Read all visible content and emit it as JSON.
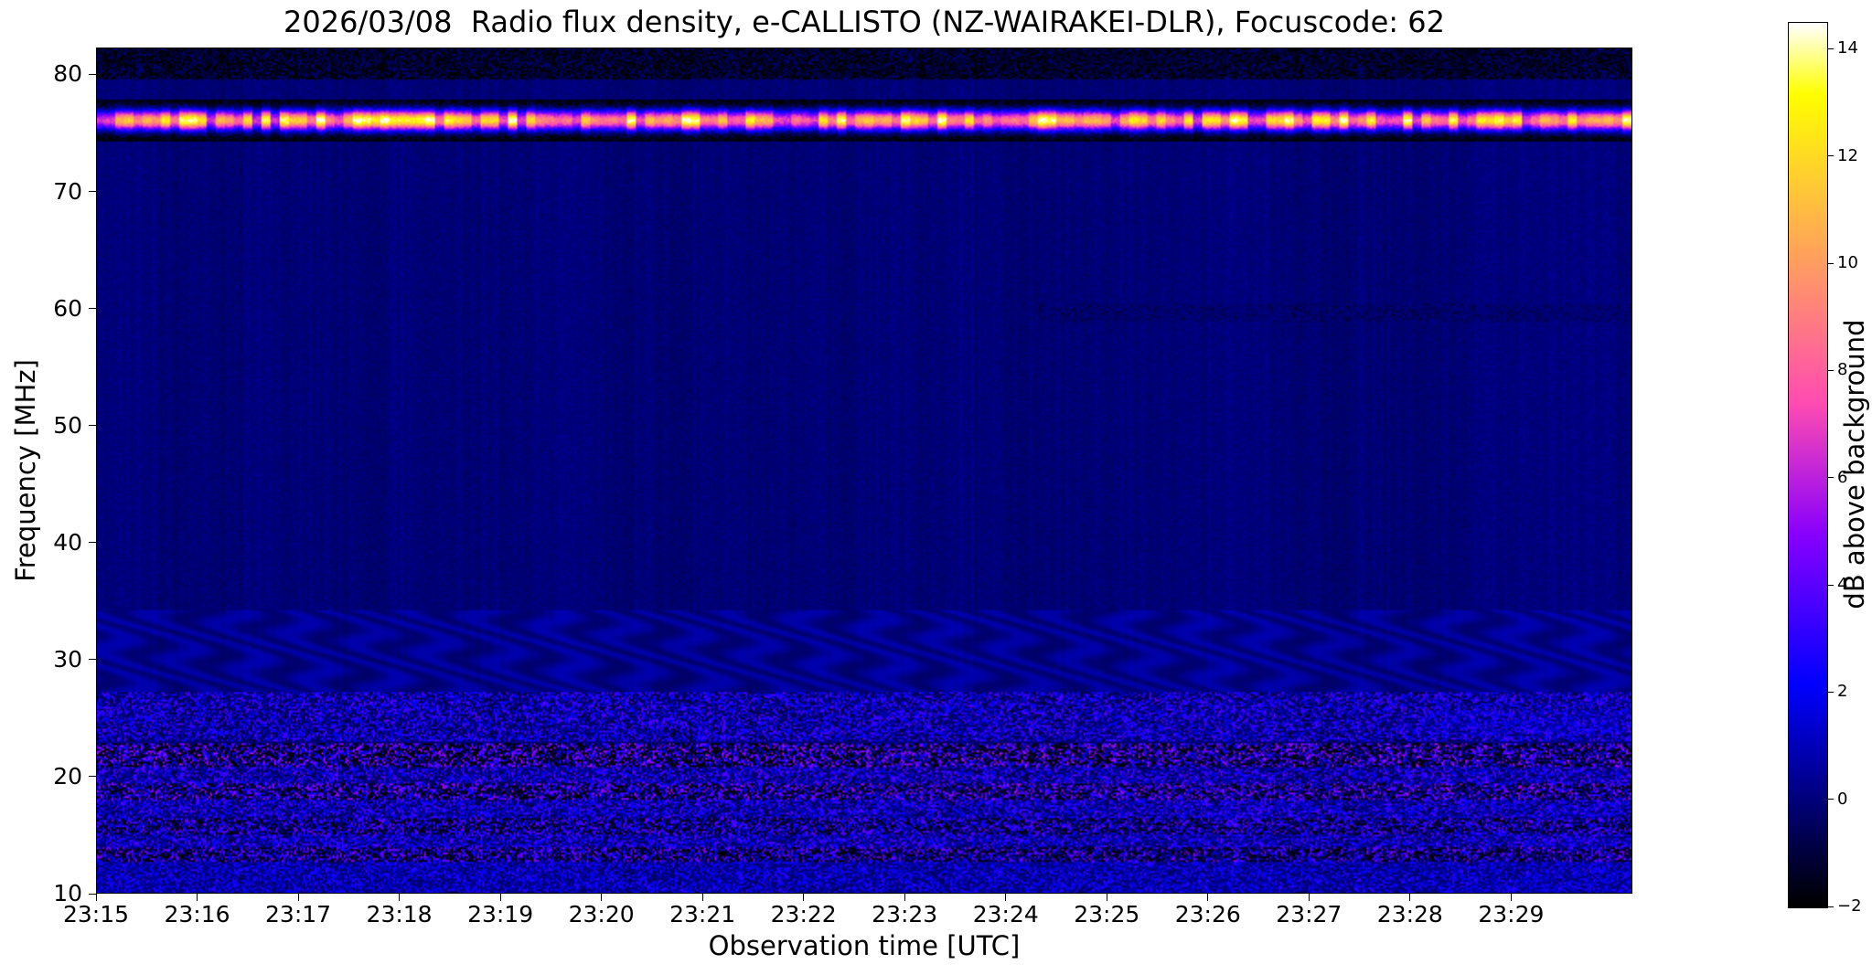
{
  "chart_data": {
    "type": "heatmap",
    "title": "2026/03/08  Radio flux density, e-CALLISTO (NZ-WAIRAKEI-DLR), Focuscode: 62",
    "xlabel": "Observation time [UTC]",
    "ylabel": "Frequency [MHz]",
    "x_ticks": [
      "23:15",
      "23:16",
      "23:17",
      "23:18",
      "23:19",
      "23:20",
      "23:21",
      "23:22",
      "23:23",
      "23:24",
      "23:25",
      "23:26",
      "23:27",
      "23:28",
      "23:29"
    ],
    "x_range_minutes": [
      0,
      15.2
    ],
    "x_start": "23:15",
    "y_ticks": [
      80,
      70,
      60,
      50,
      40,
      30,
      20,
      10
    ],
    "y_range_mhz": [
      10,
      82.3
    ],
    "grid": false,
    "colorbar": {
      "label": "dB above background",
      "colormap": "gnuplot2",
      "range": [
        -2,
        14.5
      ],
      "ticks": [
        {
          "label": "14",
          "value": 14
        },
        {
          "label": "12",
          "value": 12
        },
        {
          "label": "10",
          "value": 10
        },
        {
          "label": "8",
          "value": 8
        },
        {
          "label": "6",
          "value": 6
        },
        {
          "label": "4",
          "value": 4
        },
        {
          "label": "2",
          "value": 2
        },
        {
          "label": "0",
          "value": 0
        },
        {
          "label": "−2",
          "value": -2
        }
      ]
    },
    "background_db": 0.45,
    "bands": [
      {
        "name": "upper-edge-noise",
        "f": [
          79.6,
          82.3
        ],
        "mode": "noise",
        "base": 0.35,
        "noise": 1.0,
        "speckle_prob": 0.012,
        "speckle": [
          -2,
          1.5
        ]
      },
      {
        "name": "rfi-band-76mhz",
        "f": [
          74.35,
          77.85
        ],
        "mode": "rfi",
        "center": 76.15,
        "sigma": 0.6,
        "peak": 15.5,
        "dark_fraction": 0.5
      },
      {
        "name": "faint-smudge-59mhz",
        "f": [
          58.8,
          60.4
        ],
        "t": [
          9.3,
          15.2
        ],
        "mode": "noise",
        "base": 0.15,
        "noise": 0.45,
        "speckle_prob": 0,
        "speckle": [
          0,
          0
        ]
      },
      {
        "name": "interference-waves-30mhz",
        "f": [
          27.2,
          34.2
        ],
        "mode": "wave",
        "base": 0.45,
        "amp": 0.5
      },
      {
        "name": "speckle-band-25mhz",
        "f": [
          22.9,
          27.2
        ],
        "mode": "noise",
        "base": 0.55,
        "noise": 0.7,
        "speckle_prob": 0.006,
        "speckle": [
          2.5,
          5.5
        ]
      },
      {
        "name": "streaks-24mhz-late",
        "f": [
          23.6,
          25.6
        ],
        "t": [
          13.1,
          15.2
        ],
        "mode": "noise",
        "base": 1.4,
        "noise": 0.9,
        "speckle_prob": 0.02,
        "speckle": [
          2.5,
          5
        ]
      },
      {
        "name": "dark-band-21-22mhz",
        "f": [
          20.7,
          22.75
        ],
        "mode": "noise",
        "base": -0.75,
        "noise": 0.85,
        "speckle_prob": 0.028,
        "speckle": [
          3,
          8.5
        ]
      },
      {
        "name": "gap-band-20mhz",
        "f": [
          19.3,
          20.7
        ],
        "mode": "noise",
        "base": 0.5,
        "noise": 0.6,
        "speckle_prob": 0.006,
        "speckle": [
          2.5,
          6
        ]
      },
      {
        "name": "dark-band-18-19mhz",
        "f": [
          18.0,
          19.3
        ],
        "mode": "noise",
        "base": -0.45,
        "noise": 0.8,
        "speckle_prob": 0.02,
        "speckle": [
          3,
          8
        ]
      },
      {
        "name": "noise-band-17mhz",
        "f": [
          16.4,
          18.0
        ],
        "mode": "noise",
        "base": 0.9,
        "noise": 0.85,
        "speckle_prob": 0.007,
        "speckle": [
          2.5,
          5.5
        ]
      },
      {
        "name": "dark-band-15-16mhz",
        "f": [
          15.0,
          16.4
        ],
        "mode": "noise",
        "base": -0.25,
        "noise": 0.85,
        "speckle_prob": 0.012,
        "speckle": [
          2.5,
          6.5
        ]
      },
      {
        "name": "noise-band-14mhz",
        "f": [
          13.9,
          15.0
        ],
        "mode": "noise",
        "base": 0.85,
        "noise": 0.8,
        "speckle_prob": 0.008,
        "speckle": [
          2.5,
          5.5
        ]
      },
      {
        "name": "dark-band-13mhz",
        "f": [
          12.65,
          13.9
        ],
        "mode": "noise",
        "base": -0.55,
        "noise": 0.85,
        "speckle_prob": 0.022,
        "speckle": [
          2.5,
          7.5
        ]
      },
      {
        "name": "bottom-band",
        "f": [
          10.0,
          12.65
        ],
        "mode": "noise",
        "base": 0.75,
        "noise": 0.55,
        "speckle_prob": 0.004,
        "speckle": [
          2,
          4.5
        ]
      }
    ]
  }
}
